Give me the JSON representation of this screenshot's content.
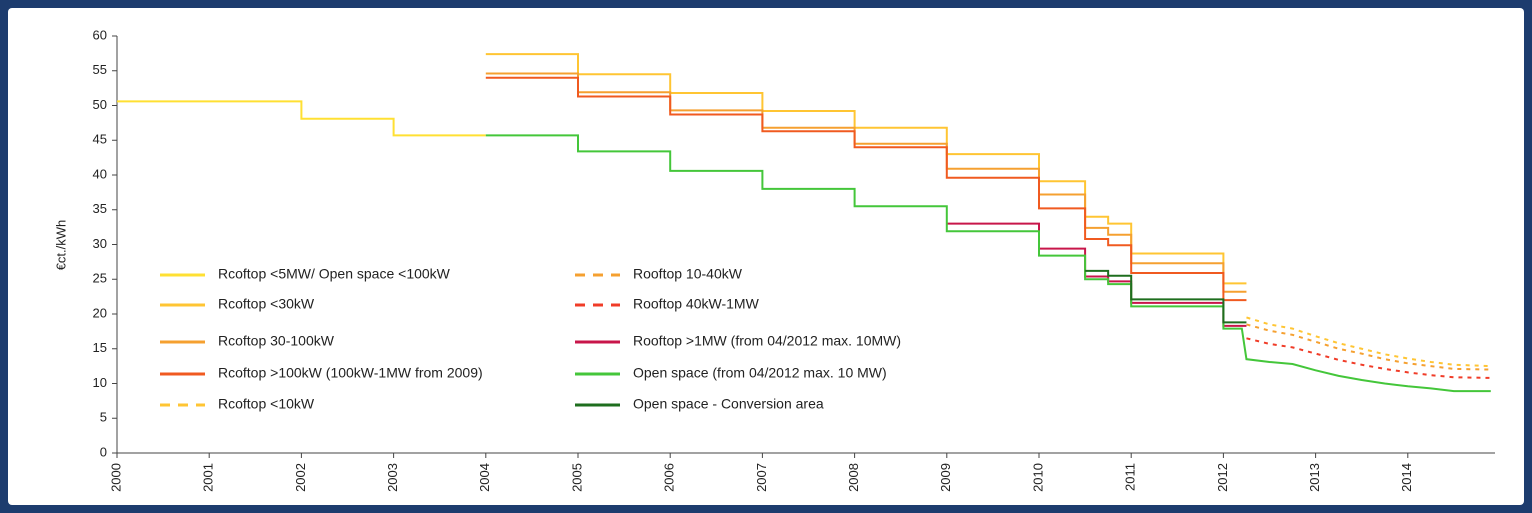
{
  "chart_data": {
    "type": "line",
    "step": true,
    "ylabel": "€ct./kWh",
    "xlim": [
      2000,
      2015
    ],
    "ylim": [
      0,
      60
    ],
    "xticks": [
      2000,
      2001,
      2002,
      2003,
      2004,
      2005,
      2006,
      2007,
      2008,
      2009,
      2010,
      2011,
      2012,
      2013,
      2014
    ],
    "yticks": [
      0,
      5,
      10,
      15,
      20,
      25,
      30,
      35,
      40,
      45,
      50,
      55,
      60
    ],
    "grid": false,
    "series": [
      {
        "name": "Rcoftop <5MW/ Open space <100kW",
        "color": "#ffe033",
        "dash": false,
        "x": [
          2000,
          2002,
          2002,
          2003,
          2003,
          2004
        ],
        "values": [
          50.6,
          50.6,
          48.1,
          48.1,
          45.7,
          45.7
        ]
      },
      {
        "name": "Rcoftop <30kW",
        "color": "#ffc533",
        "dash": false,
        "x": [
          2004,
          2005,
          2005,
          2006,
          2006,
          2007,
          2007,
          2008,
          2008,
          2009,
          2009,
          2010,
          2010,
          2010.5,
          2010.5,
          2010.75,
          2010.75,
          2011,
          2011,
          2012,
          2012,
          2012.25
        ],
        "values": [
          57.4,
          57.4,
          54.5,
          54.5,
          51.8,
          51.8,
          49.2,
          49.2,
          46.8,
          46.8,
          43.0,
          43.0,
          39.1,
          39.1,
          34.0,
          34.0,
          33.0,
          33.0,
          28.7,
          28.7,
          24.4,
          24.4
        ]
      },
      {
        "name": "Rcoftop 30-100kW",
        "color": "#f5a030",
        "dash": false,
        "x": [
          2004,
          2005,
          2005,
          2006,
          2006,
          2007,
          2007,
          2008,
          2008,
          2009,
          2009,
          2010,
          2010,
          2010.5,
          2010.5,
          2010.75,
          2010.75,
          2011,
          2011,
          2012,
          2012,
          2012.25
        ],
        "values": [
          54.6,
          54.6,
          51.9,
          51.9,
          49.3,
          49.3,
          46.8,
          46.8,
          44.5,
          44.5,
          40.9,
          40.9,
          37.2,
          37.2,
          32.4,
          32.4,
          31.4,
          31.4,
          27.3,
          27.3,
          23.2,
          23.2
        ]
      },
      {
        "name": "Rcoftop >100kW (100kW-1MW from 2009)",
        "color": "#f05a20",
        "dash": false,
        "x": [
          2004,
          2005,
          2005,
          2006,
          2006,
          2007,
          2007,
          2008,
          2008,
          2009,
          2009,
          2010,
          2010,
          2010.5,
          2010.5,
          2010.75,
          2010.75,
          2011,
          2011,
          2012,
          2012,
          2012.25
        ],
        "values": [
          54.0,
          54.0,
          51.3,
          51.3,
          48.7,
          48.7,
          46.3,
          46.3,
          44.0,
          44.0,
          39.6,
          39.6,
          35.2,
          35.2,
          30.8,
          30.8,
          29.9,
          29.9,
          25.9,
          25.9,
          22.0,
          22.0
        ]
      },
      {
        "name": "Rcoftop <10kW",
        "color": "#ffc533",
        "dash": true,
        "x": [
          2012.25,
          2012.5,
          2012.75,
          2013,
          2013.25,
          2013.5,
          2013.75,
          2014,
          2014.25,
          2014.5,
          2014.9
        ],
        "values": [
          19.5,
          18.5,
          17.9,
          16.8,
          15.8,
          15.0,
          14.2,
          13.6,
          13.1,
          12.7,
          12.5
        ]
      },
      {
        "name": "Rooftop 10-40kW",
        "color": "#f5a030",
        "dash": true,
        "x": [
          2012.25,
          2012.5,
          2012.75,
          2013,
          2013.25,
          2013.5,
          2013.75,
          2014,
          2014.25,
          2014.5,
          2014.9
        ],
        "values": [
          18.5,
          17.6,
          17.0,
          16.0,
          15.0,
          14.3,
          13.5,
          12.9,
          12.5,
          12.1,
          12.0
        ]
      },
      {
        "name": "Rooftop 40kW-1MW",
        "color": "#f03c28",
        "dash": true,
        "x": [
          2012.25,
          2012.5,
          2012.75,
          2013,
          2013.25,
          2013.5,
          2013.75,
          2014,
          2014.25,
          2014.5,
          2014.9
        ],
        "values": [
          16.5,
          15.7,
          15.2,
          14.3,
          13.4,
          12.7,
          12.1,
          11.6,
          11.2,
          10.9,
          10.8
        ]
      },
      {
        "name": "Rooftop >1MW (from 04/2012 max. 10MW)",
        "color": "#c8164a",
        "dash": false,
        "x": [
          2009,
          2010,
          2010,
          2010.5,
          2010.5,
          2010.75,
          2010.75,
          2011,
          2011,
          2012,
          2012,
          2012.25
        ],
        "values": [
          33.0,
          33.0,
          29.4,
          29.4,
          25.4,
          25.4,
          24.7,
          24.7,
          21.6,
          21.6,
          18.3,
          18.3
        ]
      },
      {
        "name": "Open space (from 04/2012 max. 10 MW)",
        "color": "#44c63a",
        "dash": false,
        "x": [
          2004,
          2005,
          2005,
          2006,
          2006,
          2007,
          2007,
          2008,
          2008,
          2009,
          2009,
          2010,
          2010,
          2010.5,
          2010.5,
          2010.75,
          2010.75,
          2011,
          2011,
          2012,
          2012,
          2012.2,
          2012.25,
          2012.5,
          2012.75,
          2013,
          2013.25,
          2013.5,
          2013.75,
          2014,
          2014.25,
          2014.5,
          2014.9
        ],
        "values": [
          45.7,
          45.7,
          43.4,
          43.4,
          40.6,
          40.6,
          38.0,
          38.0,
          35.5,
          35.5,
          31.9,
          31.9,
          28.4,
          28.4,
          25.0,
          25.0,
          24.3,
          24.3,
          21.1,
          21.1,
          17.9,
          17.9,
          13.5,
          13.1,
          12.8,
          11.9,
          11.1,
          10.5,
          10.0,
          9.6,
          9.3,
          8.9,
          8.9
        ]
      },
      {
        "name": "Open space - Conversion area",
        "color": "#1e6e1e",
        "dash": false,
        "x": [
          2010.5,
          2010.75,
          2010.75,
          2011,
          2011,
          2012,
          2012,
          2012.25
        ],
        "values": [
          26.2,
          26.2,
          25.5,
          25.5,
          22.1,
          22.1,
          18.8,
          18.8
        ]
      }
    ]
  }
}
